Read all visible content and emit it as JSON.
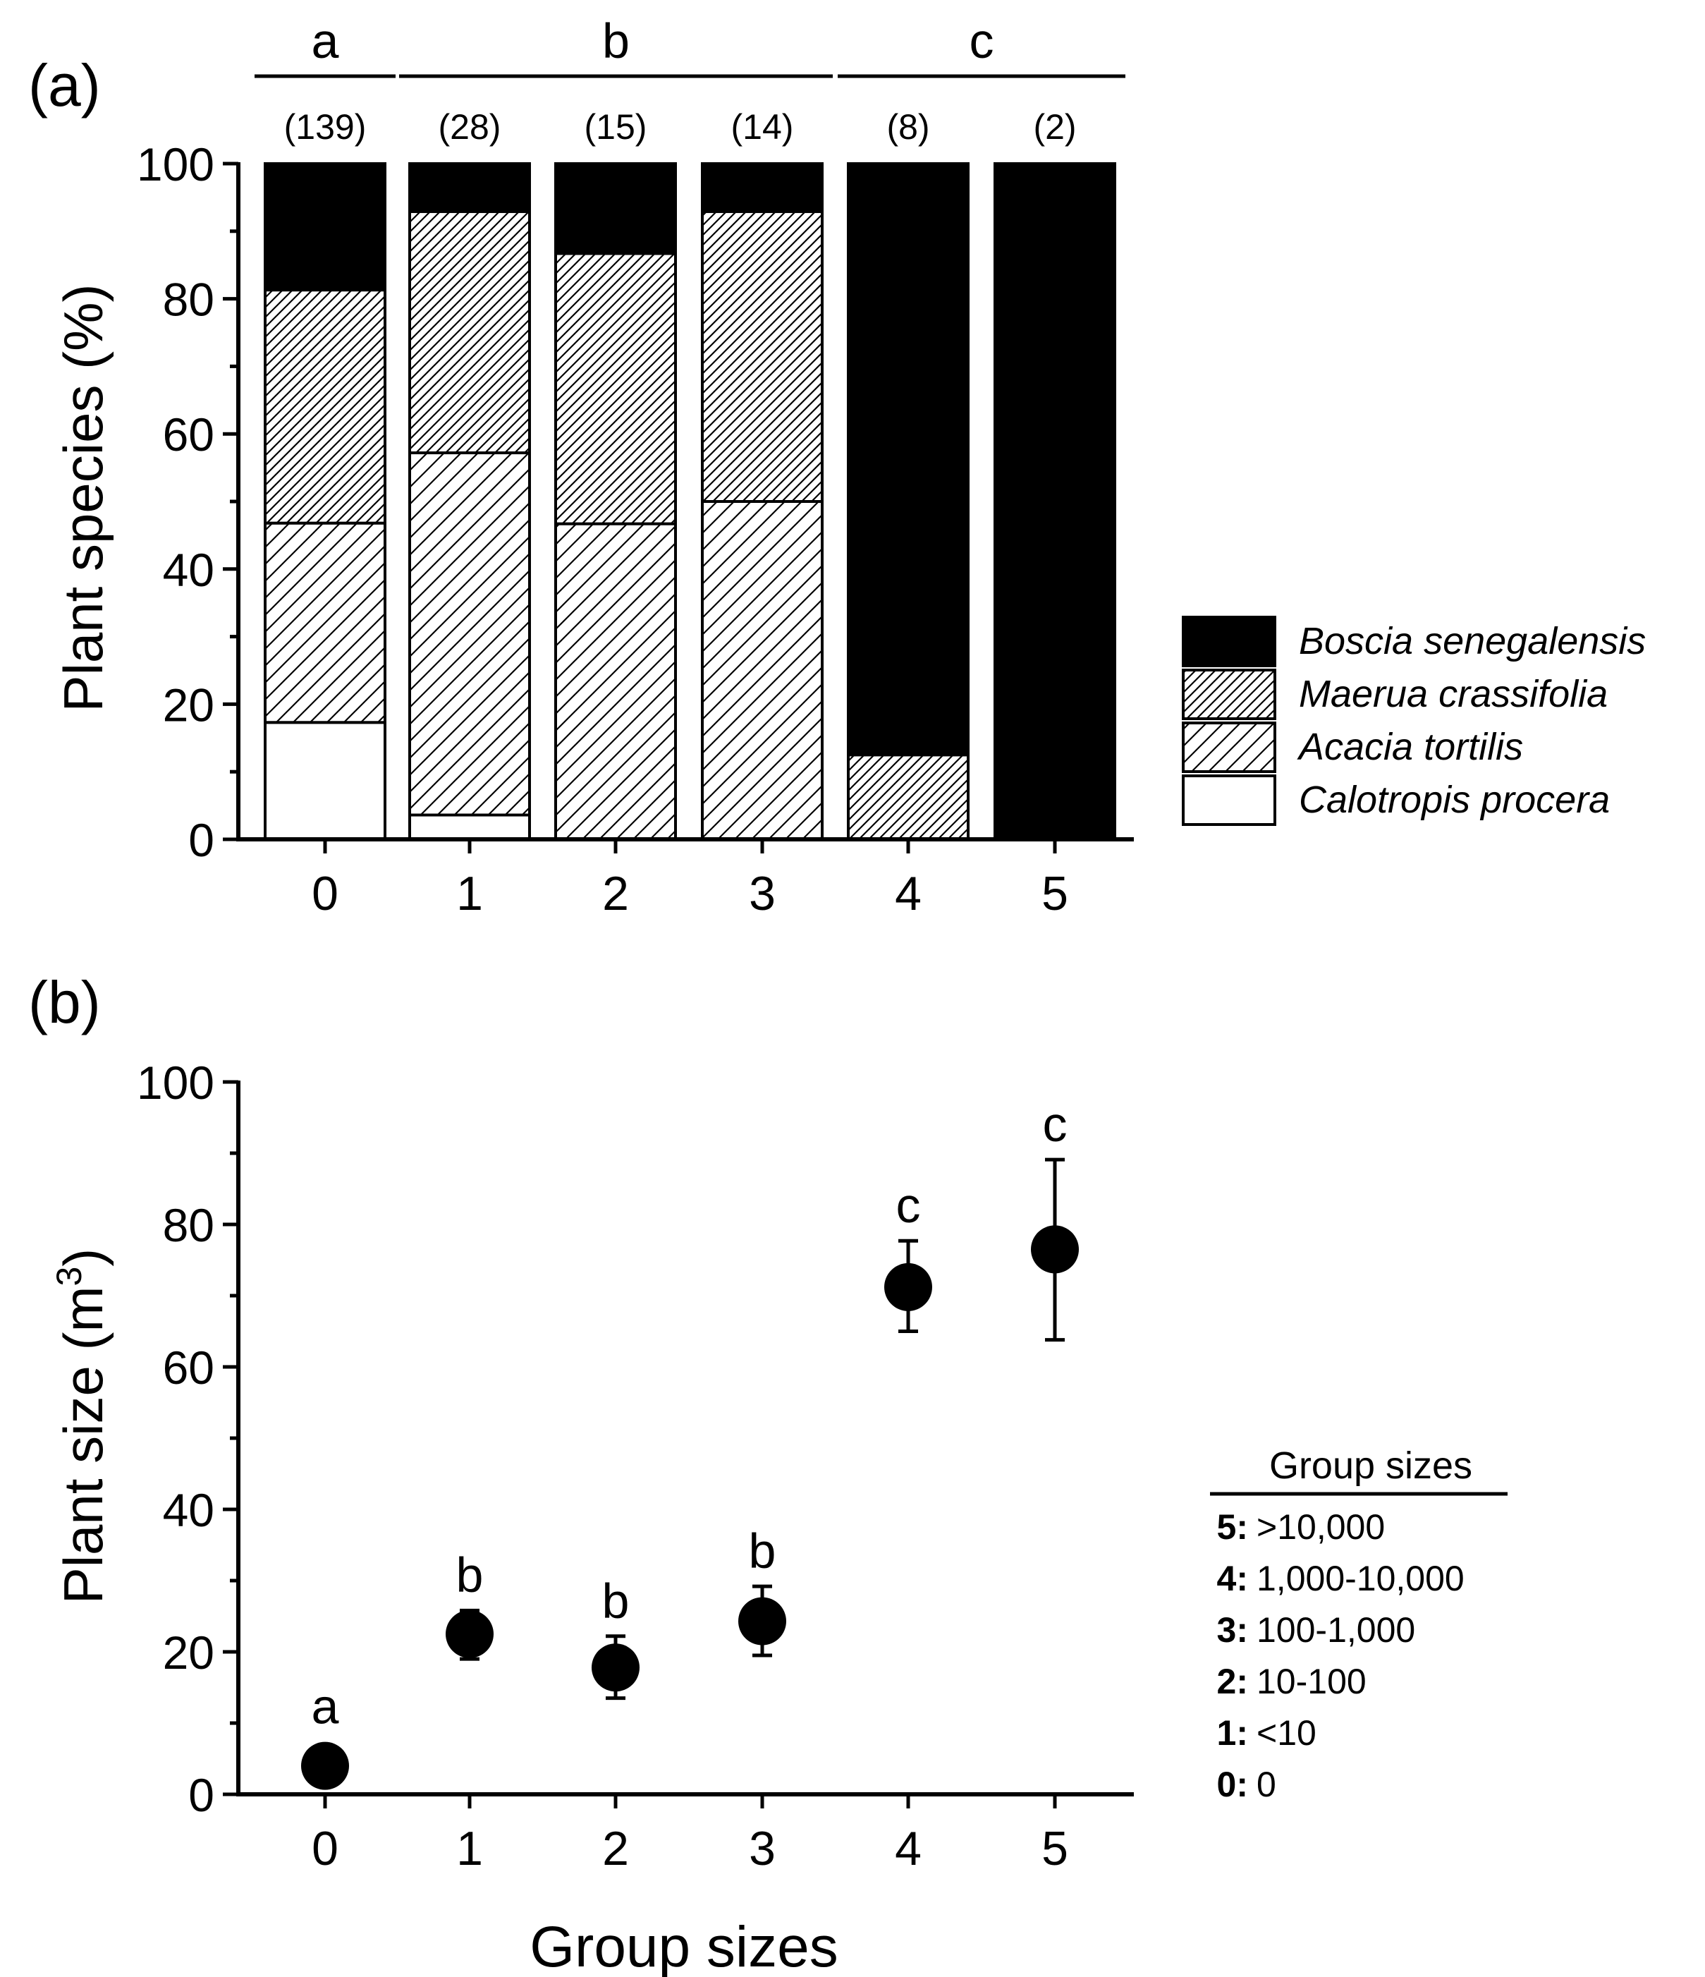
{
  "chart_data": [
    {
      "panel": "(a)",
      "type": "bar",
      "stacked": true,
      "ylabel": "Plant species (%)",
      "xlabel": "",
      "ylim": [
        0,
        100
      ],
      "yticks": [
        "0",
        "20",
        "40",
        "60",
        "80",
        "100"
      ],
      "categories": [
        "0",
        "1",
        "2",
        "3",
        "4",
        "5"
      ],
      "sample_sizes": [
        "(139)",
        "(28)",
        "(15)",
        "(14)",
        "(8)",
        "(2)"
      ],
      "significance_groups": [
        {
          "label": "a",
          "from": 0,
          "to": 0
        },
        {
          "label": "b",
          "from": 1,
          "to": 3
        },
        {
          "label": "c",
          "from": 4,
          "to": 5
        }
      ],
      "series": [
        {
          "name": "Calotropis procera",
          "pattern": "open",
          "values": [
            17.3,
            3.6,
            0,
            0,
            0,
            0
          ]
        },
        {
          "name": "Acacia tortilis",
          "pattern": "sparse-hatch",
          "values": [
            29.5,
            53.6,
            46.7,
            50.0,
            0,
            0
          ]
        },
        {
          "name": "Maerua crassifolia",
          "pattern": "dense-hatch",
          "values": [
            34.5,
            35.7,
            40.0,
            42.9,
            12.5,
            0
          ]
        },
        {
          "name": "Boscia senegalensis",
          "pattern": "solid",
          "values": [
            18.7,
            7.1,
            13.3,
            7.1,
            87.5,
            100
          ]
        }
      ],
      "legend": {
        "placement": "right",
        "entries": [
          "Boscia senegalensis",
          "Maerua crassifolia",
          "Acacia tortilis",
          "Calotropis procera"
        ]
      }
    },
    {
      "panel": "(b)",
      "type": "scatter",
      "ylabel_base": "Plant size (m",
      "ylabel_sup": "3",
      "ylabel_end": ")",
      "xlabel": "Group sizes",
      "ylim": [
        0,
        100
      ],
      "yticks": [
        "0",
        "20",
        "40",
        "60",
        "80",
        "100"
      ],
      "x": [
        "0",
        "1",
        "2",
        "3",
        "4",
        "5"
      ],
      "y": [
        4.0,
        22.5,
        17.8,
        24.3,
        71.2,
        76.5
      ],
      "err_low": [
        0.0,
        3.5,
        4.3,
        4.8,
        6.2,
        12.7
      ],
      "err_high": [
        0.0,
        3.3,
        4.4,
        4.9,
        6.5,
        12.6
      ],
      "letters": [
        "a",
        "b",
        "b",
        "b",
        "c",
        "c"
      ],
      "legend": {
        "title": "Group sizes",
        "placement": "right",
        "entries": [
          {
            "key": "5:",
            "value": ">10,000"
          },
          {
            "key": "4:",
            "value": "1,000-10,000"
          },
          {
            "key": "3:",
            "value": "100-1,000"
          },
          {
            "key": "2:",
            "value": "10-100"
          },
          {
            "key": "1:",
            "value": "<10"
          },
          {
            "key": "0:",
            "value": "0"
          }
        ]
      }
    }
  ],
  "colors": {
    "ink": "#000000",
    "paper": "#ffffff"
  }
}
